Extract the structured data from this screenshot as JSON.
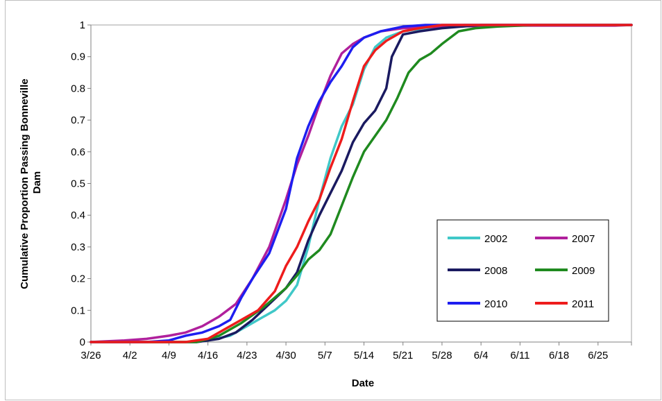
{
  "chart_data": {
    "type": "line",
    "xlabel": "Date",
    "ylabel": "Cumulative  Proportion Passing  Bonneville Dam",
    "ylabel_lines": [
      "Cumulative  Proportion Passing  Bonneville",
      "Dam"
    ],
    "xlim": [
      "3/26",
      "7/1"
    ],
    "ylim": [
      0,
      1
    ],
    "x_ticks": [
      "3/26",
      "4/2",
      "4/9",
      "4/16",
      "4/23",
      "4/30",
      "5/7",
      "5/14",
      "5/21",
      "5/28",
      "6/4",
      "6/11",
      "6/18",
      "6/25"
    ],
    "y_ticks": [
      "0",
      "0.1",
      "0.2",
      "0.3",
      "0.4",
      "0.5",
      "0.6",
      "0.7",
      "0.8",
      "0.9",
      "1"
    ],
    "grid": false,
    "legend_position": "bottom-right",
    "series": [
      {
        "name": "2002",
        "color": "#40c8c8",
        "x": [
          "3/26",
          "4/12",
          "4/16",
          "4/20",
          "4/23",
          "4/26",
          "4/28",
          "4/30",
          "5/2",
          "5/4",
          "5/6",
          "5/8",
          "5/10",
          "5/12",
          "5/14",
          "5/16",
          "5/18",
          "5/21",
          "5/25",
          "6/1",
          "7/1"
        ],
        "y": [
          0,
          0,
          0.005,
          0.02,
          0.05,
          0.08,
          0.1,
          0.13,
          0.18,
          0.3,
          0.45,
          0.58,
          0.68,
          0.75,
          0.86,
          0.93,
          0.96,
          0.98,
          0.99,
          1.0,
          1.0
        ]
      },
      {
        "name": "2007",
        "color": "#b0209c",
        "x": [
          "3/26",
          "4/1",
          "4/5",
          "4/9",
          "4/12",
          "4/15",
          "4/18",
          "4/21",
          "4/24",
          "4/27",
          "4/30",
          "5/2",
          "5/4",
          "5/6",
          "5/8",
          "5/10",
          "5/12",
          "5/14",
          "5/17",
          "5/21",
          "5/28",
          "6/10",
          "6/28",
          "7/1"
        ],
        "y": [
          0,
          0.005,
          0.01,
          0.02,
          0.03,
          0.05,
          0.08,
          0.12,
          0.2,
          0.3,
          0.45,
          0.56,
          0.65,
          0.75,
          0.84,
          0.91,
          0.94,
          0.96,
          0.98,
          0.99,
          0.995,
          0.998,
          0.998,
          1.0
        ]
      },
      {
        "name": "2008",
        "color": "#1a1a60",
        "x": [
          "3/26",
          "4/14",
          "4/18",
          "4/21",
          "4/24",
          "4/27",
          "4/30",
          "5/2",
          "5/4",
          "5/6",
          "5/8",
          "5/10",
          "5/12",
          "5/14",
          "5/16",
          "5/18",
          "5/19",
          "5/21",
          "5/24",
          "5/28",
          "6/4",
          "7/1"
        ],
        "y": [
          0,
          0,
          0.01,
          0.03,
          0.07,
          0.12,
          0.17,
          0.22,
          0.32,
          0.4,
          0.47,
          0.54,
          0.63,
          0.69,
          0.73,
          0.8,
          0.9,
          0.97,
          0.98,
          0.99,
          1.0,
          1.0
        ]
      },
      {
        "name": "2009",
        "color": "#1f8a1f",
        "x": [
          "3/26",
          "4/14",
          "4/18",
          "4/22",
          "4/26",
          "4/30",
          "5/2",
          "5/4",
          "5/6",
          "5/8",
          "5/10",
          "5/12",
          "5/14",
          "5/16",
          "5/18",
          "5/20",
          "5/22",
          "5/24",
          "5/26",
          "5/28",
          "5/31",
          "6/3",
          "6/7",
          "6/14",
          "7/1"
        ],
        "y": [
          0,
          0,
          0.02,
          0.06,
          0.11,
          0.17,
          0.21,
          0.26,
          0.29,
          0.34,
          0.43,
          0.52,
          0.6,
          0.65,
          0.7,
          0.77,
          0.85,
          0.89,
          0.91,
          0.94,
          0.98,
          0.99,
          0.995,
          1.0,
          1.0
        ]
      },
      {
        "name": "2010",
        "color": "#1e1ef0",
        "x": [
          "3/26",
          "4/5",
          "4/9",
          "4/12",
          "4/15",
          "4/18",
          "4/20",
          "4/22",
          "4/24",
          "4/27",
          "4/30",
          "5/2",
          "5/4",
          "5/6",
          "5/8",
          "5/10",
          "5/12",
          "5/14",
          "5/17",
          "5/21",
          "5/25",
          "6/1",
          "7/1"
        ],
        "y": [
          0,
          0,
          0.005,
          0.02,
          0.03,
          0.05,
          0.07,
          0.14,
          0.2,
          0.28,
          0.42,
          0.58,
          0.68,
          0.76,
          0.82,
          0.87,
          0.93,
          0.96,
          0.98,
          0.995,
          1.0,
          1.0,
          1.0
        ]
      },
      {
        "name": "2011",
        "color": "#ee1c1c",
        "x": [
          "3/26",
          "4/12",
          "4/16",
          "4/19",
          "4/22",
          "4/25",
          "4/28",
          "4/30",
          "5/2",
          "5/4",
          "5/6",
          "5/8",
          "5/10",
          "5/12",
          "5/14",
          "5/16",
          "5/18",
          "5/21",
          "5/24",
          "5/28",
          "6/4",
          "7/1"
        ],
        "y": [
          0,
          0,
          0.01,
          0.04,
          0.07,
          0.1,
          0.16,
          0.24,
          0.3,
          0.38,
          0.45,
          0.55,
          0.64,
          0.76,
          0.87,
          0.92,
          0.95,
          0.98,
          0.99,
          1.0,
          1.0,
          1.0
        ]
      }
    ]
  }
}
